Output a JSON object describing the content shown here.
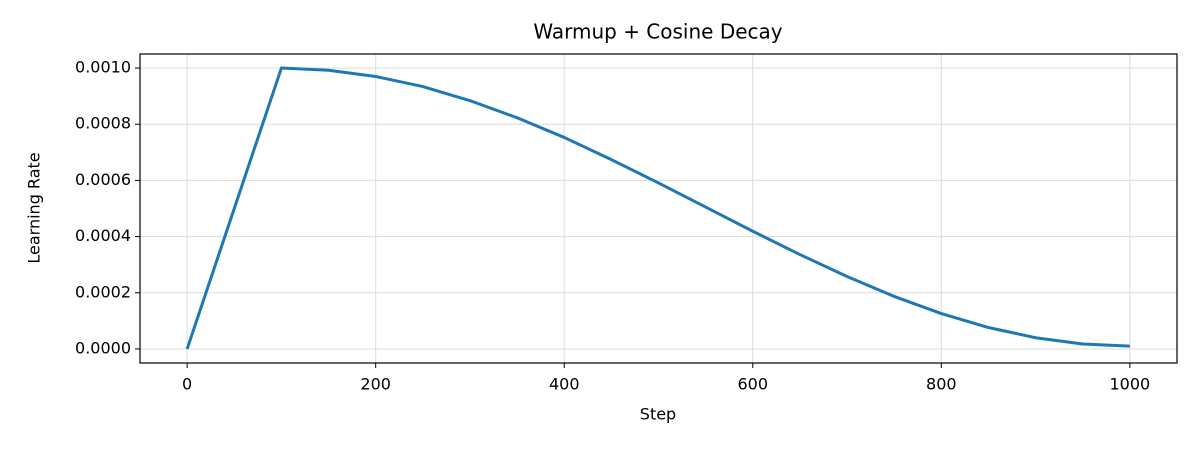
{
  "chart_data": {
    "type": "line",
    "title": "Warmup + Cosine Decay",
    "xlabel": "Step",
    "ylabel": "Learning Rate",
    "x": [
      0,
      100,
      150,
      200,
      250,
      300,
      350,
      400,
      450,
      500,
      550,
      600,
      650,
      700,
      750,
      800,
      850,
      900,
      950,
      1000
    ],
    "series": [
      {
        "name": "Learning Rate",
        "color": "#1f77b4",
        "values": [
          0,
          0.001,
          0.000992,
          0.00097,
          0.000934,
          0.000884,
          0.000823,
          0.000753,
          0.000674,
          0.000591,
          0.000505,
          0.000419,
          0.000336,
          0.000258,
          0.000187,
          0.000126,
          7.63e-05,
          3.99e-05,
          1.75e-05,
          1e-05
        ]
      }
    ],
    "xlim": [
      -50,
      1050
    ],
    "xticks": [
      0,
      200,
      400,
      600,
      800,
      1000
    ],
    "ylim": [
      -5e-05,
      0.00105
    ],
    "yticks": [
      {
        "value": 0,
        "label": "0.0000"
      },
      0.0002,
      0.0004,
      0.0006,
      0.0008,
      {
        "value": 0.001,
        "label": "0.0010"
      }
    ],
    "grid": true
  }
}
